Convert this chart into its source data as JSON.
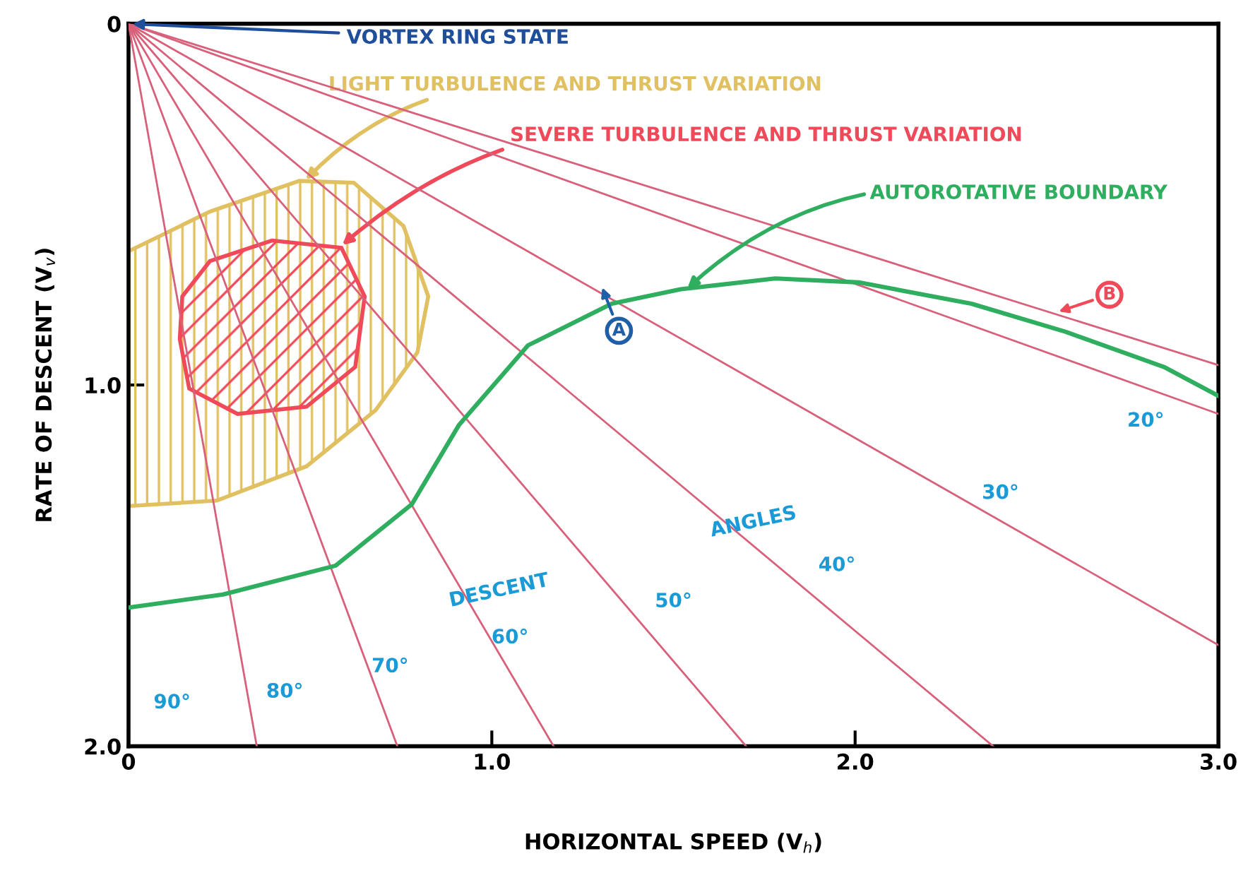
{
  "chart_data": {
    "type": "line",
    "xlabel": "HORIZONTAL SPEED (V$_{h}$)",
    "ylabel": "RATE OF DESCENT (V$_{v}$)",
    "xlim": [
      0,
      3
    ],
    "ylim": [
      2,
      0
    ],
    "xticks": [
      0,
      {
        "value": 1,
        "label": "1.0"
      },
      {
        "value": 2,
        "label": "2.0"
      },
      {
        "value": 3,
        "label": "3.0"
      }
    ],
    "yticks": [
      0,
      {
        "value": 1,
        "label": "1.0"
      },
      {
        "value": 2,
        "label": "2.0"
      }
    ],
    "grid": false,
    "legend": false,
    "series": [
      {
        "type": "area",
        "name": "LIGHT TURBULENCE AND THRUST VARIATION",
        "color": "#e0c060",
        "x": [
          0,
          0.224,
          0.47,
          0.62,
          0.757,
          0.825,
          0.795,
          0.68,
          0.49,
          0.243,
          0
        ],
        "values": [
          0.63,
          0.52,
          0.435,
          0.44,
          0.56,
          0.755,
          0.91,
          1.07,
          1.225,
          1.32,
          1.335
        ]
      },
      {
        "type": "area",
        "name": "SEVERE TURBULENCE AND THRUST VARIATION",
        "color": "#f04a5a",
        "x": [
          0.148,
          0.224,
          0.395,
          0.586,
          0.65,
          0.624,
          0.49,
          0.3,
          0.167,
          0.141,
          0.148
        ],
        "values": [
          0.755,
          0.657,
          0.6,
          0.62,
          0.755,
          0.95,
          1.06,
          1.08,
          1.01,
          0.873,
          0.755
        ]
      },
      {
        "color": "#d9607a",
        "x": [
          0,
          0.353
        ],
        "values": [
          0,
          2
        ]
      },
      {
        "color": "#d9607a",
        "x": [
          0,
          0.74
        ],
        "values": [
          0,
          2
        ]
      },
      {
        "color": "#d9607a",
        "x": [
          0,
          1.17
        ],
        "values": [
          0,
          2
        ]
      },
      {
        "color": "#d9607a",
        "x": [
          0,
          1.7
        ],
        "values": [
          0,
          2
        ]
      },
      {
        "color": "#d9607a",
        "x": [
          0,
          2.38
        ],
        "values": [
          0,
          2
        ]
      },
      {
        "color": "#d9607a",
        "x": [
          0,
          3
        ],
        "values": [
          0,
          1.72
        ]
      },
      {
        "color": "#d9607a",
        "x": [
          0,
          3
        ],
        "values": [
          0,
          1.08
        ]
      },
      {
        "color": "#d9607a",
        "x": [
          0,
          3
        ],
        "values": [
          0,
          0.945
        ]
      },
      {
        "name": "AUTOROTATIVE BOUNDARY",
        "color": "#2fae60",
        "x": [
          0,
          0.26,
          0.57,
          0.78,
          0.91,
          1.1,
          1.33,
          1.52,
          1.78,
          2.01,
          2.32,
          2.58,
          2.85,
          3.0
        ],
        "values": [
          1.616,
          1.58,
          1.5,
          1.33,
          1.11,
          0.89,
          0.775,
          0.735,
          0.705,
          0.716,
          0.775,
          0.853,
          0.95,
          1.03
        ]
      }
    ],
    "annotations": [
      {
        "text": "VORTEX RING STATE",
        "x": 0,
        "y": 0
      },
      {
        "text": "A",
        "x": 1.3,
        "y": 0.72
      },
      {
        "text": "B",
        "x": 2.55,
        "y": 0.8
      },
      "90°",
      "80°",
      "70°",
      "60°",
      "50°",
      "40°",
      "30°",
      "20°",
      "DESCENT",
      "ANGLES"
    ]
  }
}
